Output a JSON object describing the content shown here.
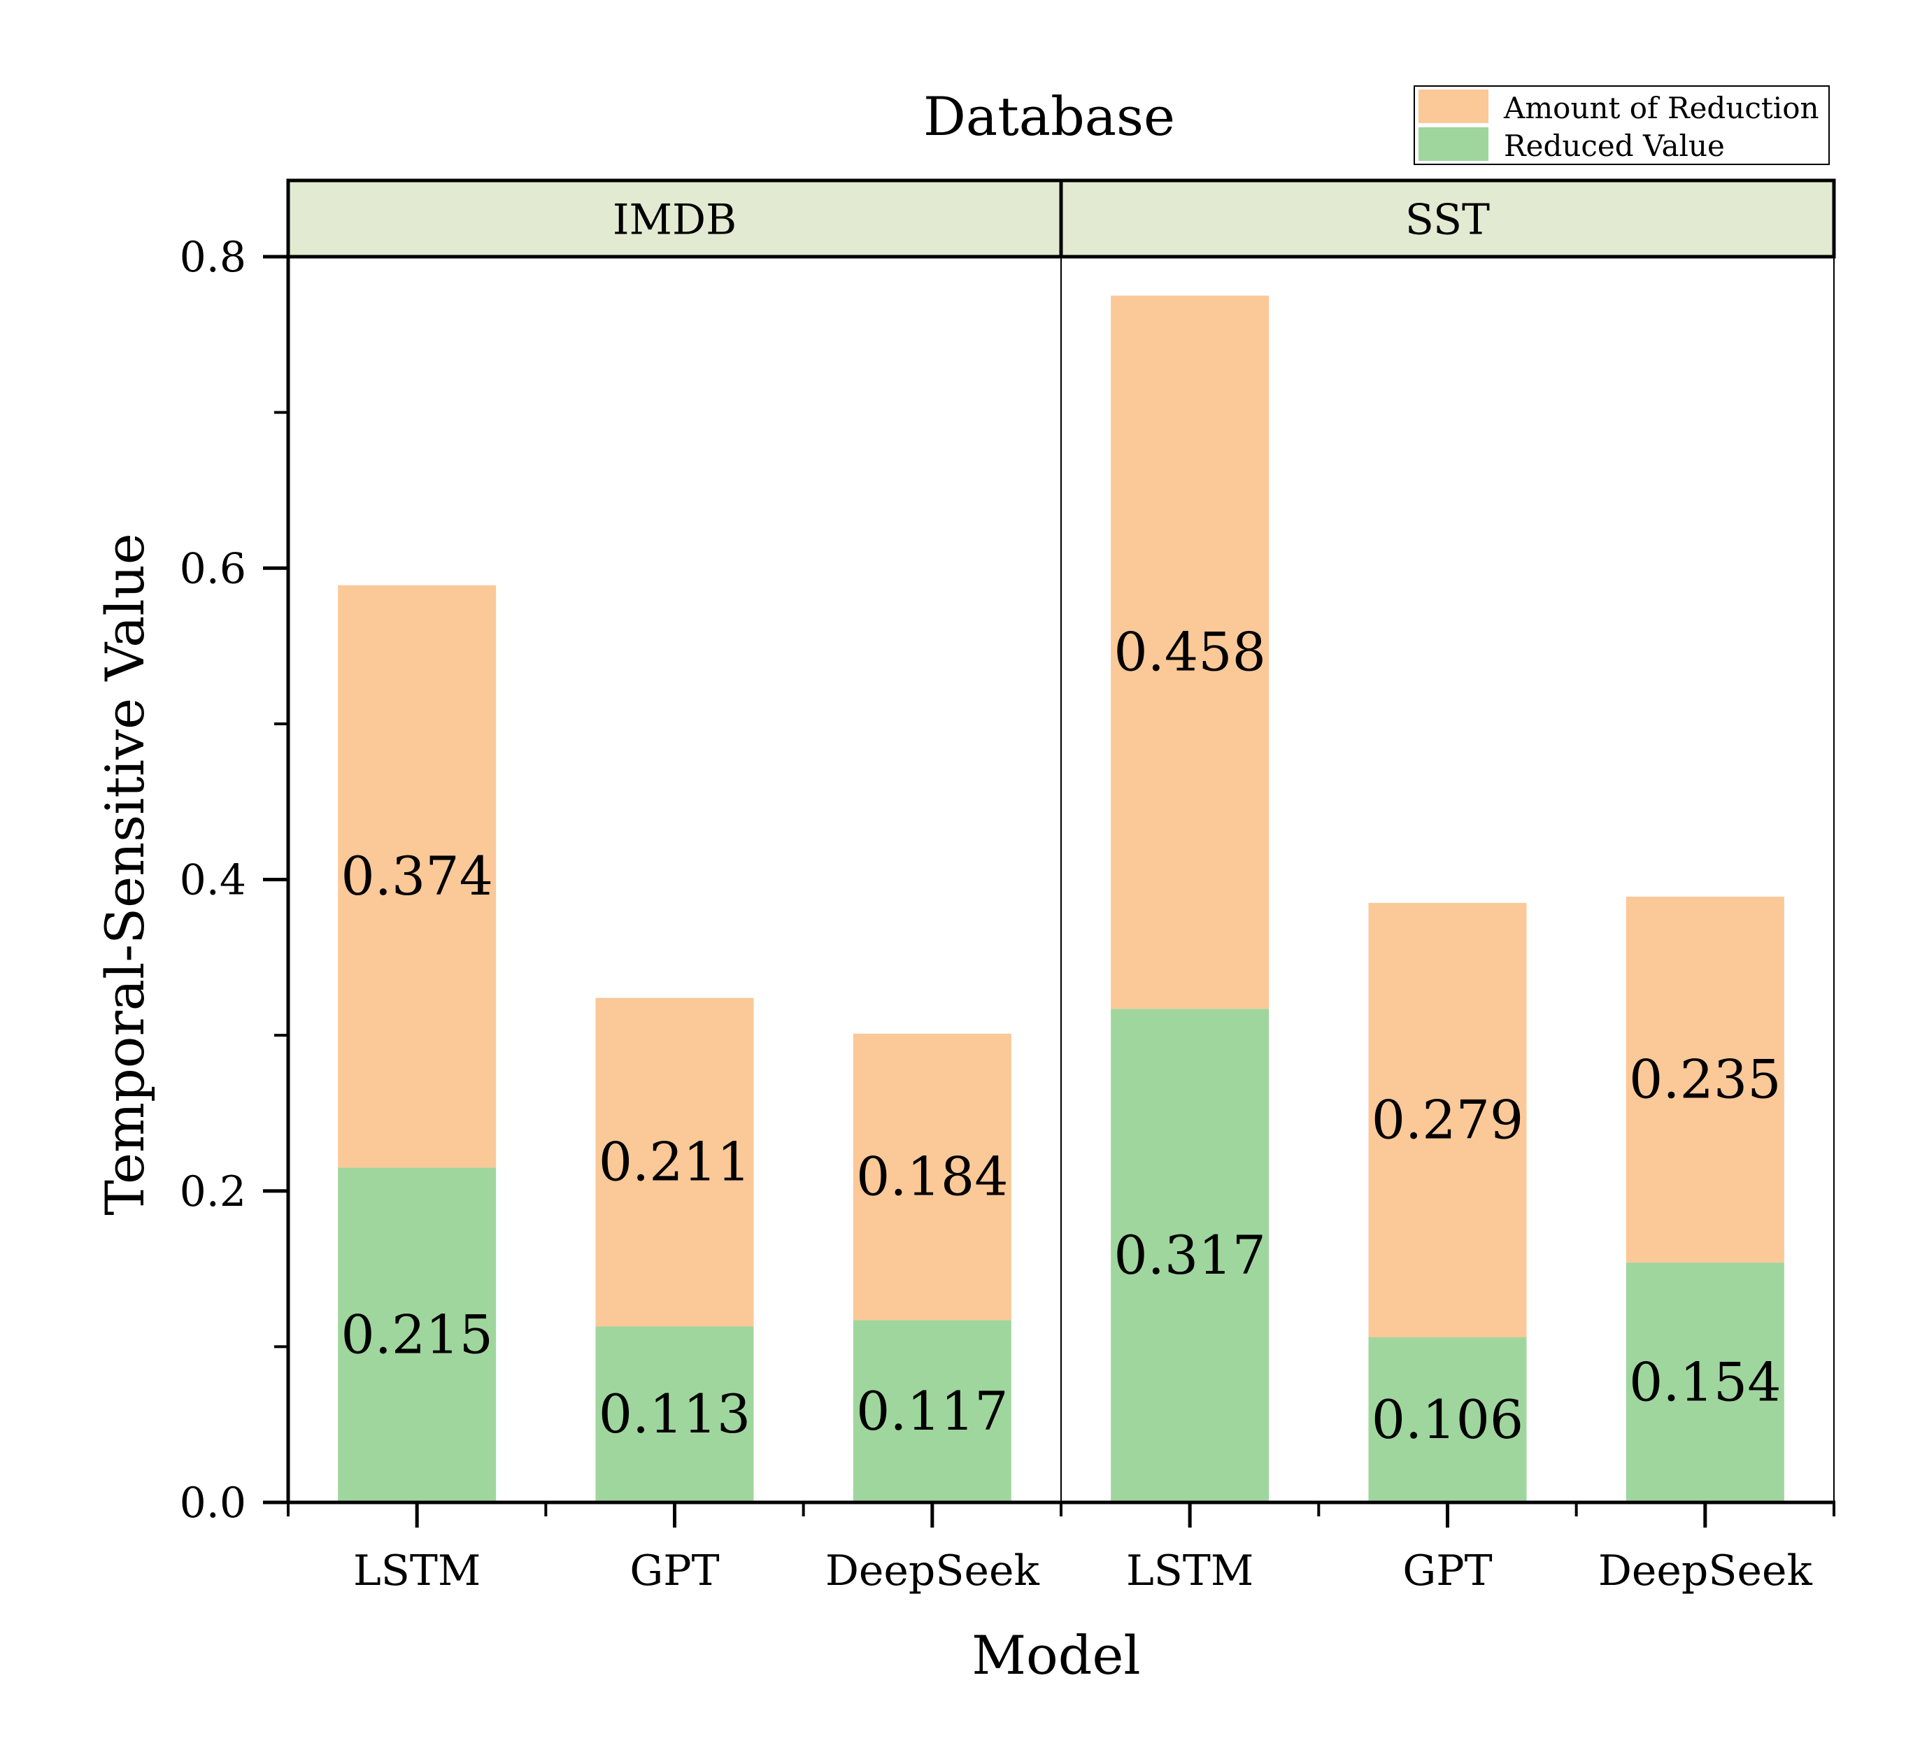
{
  "chart_data": {
    "type": "bar",
    "stacked": true,
    "title": "Database",
    "xlabel": "Model",
    "ylabel": "Temporal-Sensitive Value",
    "ylim": [
      0,
      0.8
    ],
    "yticks": [
      "0.0",
      "0.2",
      "0.4",
      "0.6",
      "0.8"
    ],
    "grid": false,
    "legend_position": "top-right",
    "panels": [
      {
        "name": "IMDB",
        "categories": [
          "LSTM",
          "GPT",
          "DeepSeek"
        ],
        "series": [
          {
            "name": "Reduced Value",
            "values": [
              0.215,
              0.113,
              0.117
            ],
            "labels": [
              "0.215",
              "0.113",
              "0.117"
            ],
            "color": "#9fd69d"
          },
          {
            "name": "Amount of Reduction",
            "values": [
              0.374,
              0.211,
              0.184
            ],
            "labels": [
              "0.374",
              "0.211",
              "0.184"
            ],
            "color": "#fbc898"
          }
        ]
      },
      {
        "name": "SST",
        "categories": [
          "LSTM",
          "GPT",
          "DeepSeek"
        ],
        "series": [
          {
            "name": "Reduced Value",
            "values": [
              0.317,
              0.106,
              0.154
            ],
            "labels": [
              "0.317",
              "0.106",
              "0.154"
            ],
            "color": "#9fd69d"
          },
          {
            "name": "Amount of Reduction",
            "values": [
              0.458,
              0.279,
              0.235
            ],
            "labels": [
              "0.458",
              "0.279",
              "0.235"
            ],
            "color": "#fbc898"
          }
        ]
      }
    ],
    "legend": [
      {
        "name": "Amount of Reduction",
        "color": "#fbc898"
      },
      {
        "name": "Reduced Value",
        "color": "#9fd69d"
      }
    ],
    "panel_header_color": "#e2ebd1"
  }
}
